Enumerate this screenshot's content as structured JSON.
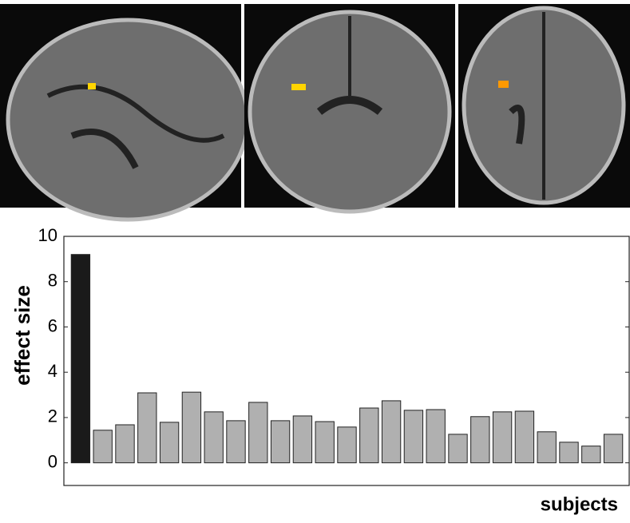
{
  "chart_data": {
    "type": "bar",
    "ylabel": "effect size",
    "xlabel": "subjects",
    "categories": [
      null,
      null,
      null,
      null,
      null,
      null,
      null,
      null,
      null,
      null,
      null,
      null,
      null,
      null,
      null,
      null,
      null,
      null,
      null,
      null,
      null,
      null,
      null,
      null,
      null
    ],
    "values": [
      9.2,
      1.44,
      1.68,
      3.09,
      1.79,
      3.12,
      2.25,
      1.86,
      2.67,
      1.86,
      2.07,
      1.82,
      1.58,
      2.42,
      2.74,
      2.32,
      2.35,
      1.26,
      2.04,
      2.25,
      2.28,
      1.37,
      0.91,
      0.74,
      1.26
    ],
    "colors": [
      "#1a1a1a",
      "#b0b0b0",
      "#b0b0b0",
      "#b0b0b0",
      "#b0b0b0",
      "#b0b0b0",
      "#b0b0b0",
      "#b0b0b0",
      "#b0b0b0",
      "#b0b0b0",
      "#b0b0b0",
      "#b0b0b0",
      "#b0b0b0",
      "#b0b0b0",
      "#b0b0b0",
      "#b0b0b0",
      "#b0b0b0",
      "#b0b0b0",
      "#b0b0b0",
      "#b0b0b0",
      "#b0b0b0",
      "#b0b0b0",
      "#b0b0b0",
      "#b0b0b0",
      "#b0b0b0"
    ],
    "ylim": [
      -1,
      10
    ],
    "yticks": [
      0,
      2,
      4,
      6,
      8,
      10
    ]
  }
}
